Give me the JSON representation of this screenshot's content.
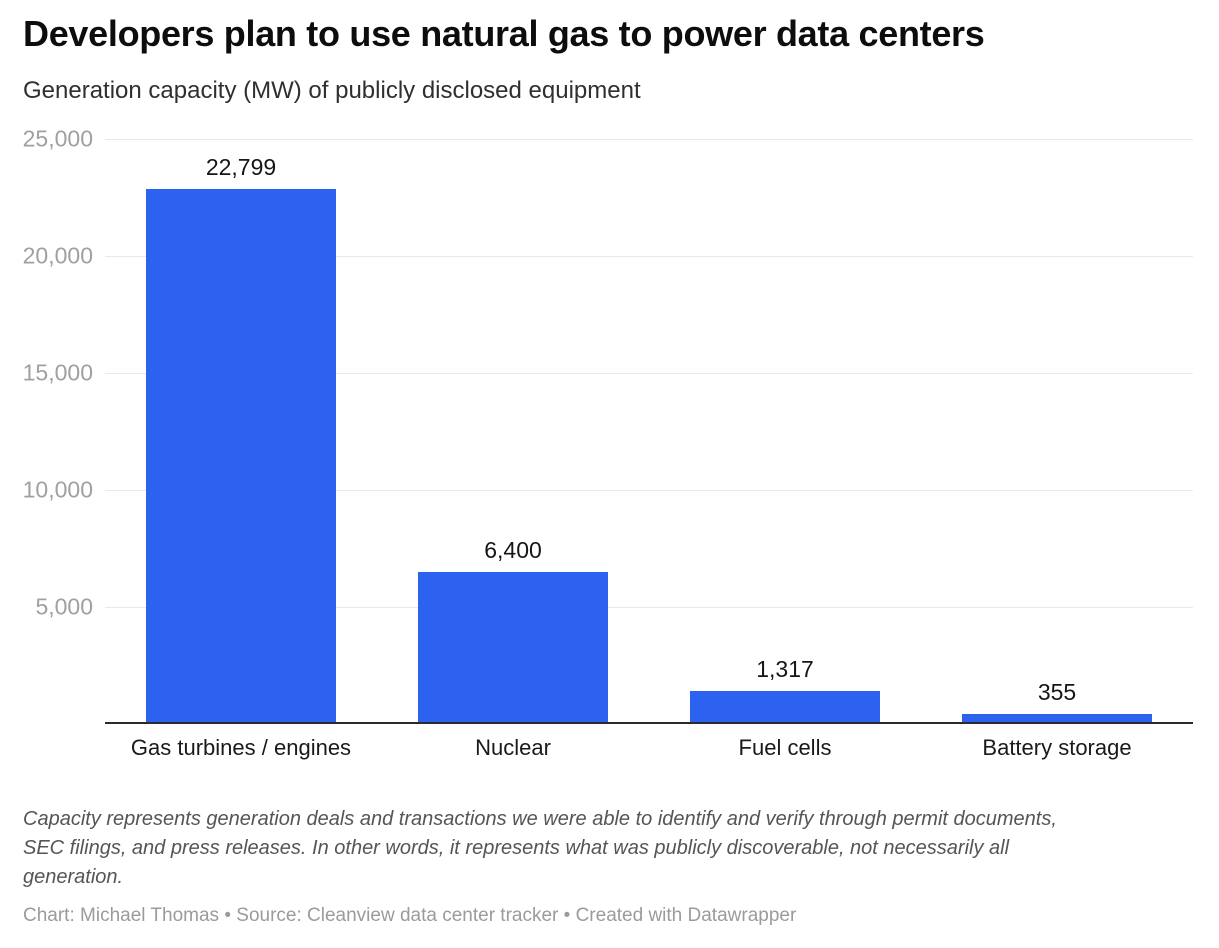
{
  "header": {
    "title": "Developers plan to use natural gas to power data centers",
    "subtitle": "Generation capacity (MW) of publicly disclosed equipment"
  },
  "chart_data": {
    "type": "bar",
    "title": "Developers plan to use natural gas to power data centers",
    "subtitle": "Generation capacity (MW) of publicly disclosed equipment",
    "categories": [
      "Gas turbines / engines",
      "Nuclear",
      "Fuel cells",
      "Battery storage"
    ],
    "values": [
      22799,
      6400,
      1317,
      355
    ],
    "value_labels": [
      "22,799",
      "6,400",
      "1,317",
      "355"
    ],
    "xlabel": "",
    "ylabel": "",
    "ylim": [
      0,
      25000
    ],
    "yticks": [
      {
        "value": 25000,
        "label": "25,000"
      },
      {
        "value": 20000,
        "label": "20,000"
      },
      {
        "value": 15000,
        "label": "15,000"
      },
      {
        "value": 10000,
        "label": "10,000"
      },
      {
        "value": 5000,
        "label": "5,000"
      }
    ],
    "grid": "horizontal",
    "legend": "none"
  },
  "colors": {
    "bar": "#2D62F0",
    "gridline": "#e9e9e9",
    "axis_line": "#2b2b2b",
    "tick_label": "#a0a0a0",
    "category_label": "#1a1a1a",
    "value_label": "#161616",
    "title": "#0d0d0d",
    "subtitle": "#2f2f2f",
    "note": "#555555",
    "credits": "#9b9b9b"
  },
  "footer": {
    "note": "Capacity represents generation deals and transactions we were able to identify and verify through permit documents, SEC filings, and press releases. In other words, it represents what was publicly discoverable, not necessarily all generation.",
    "credits": "Chart: Michael Thomas • Source: Cleanview data center tracker • Created with Datawrapper"
  }
}
